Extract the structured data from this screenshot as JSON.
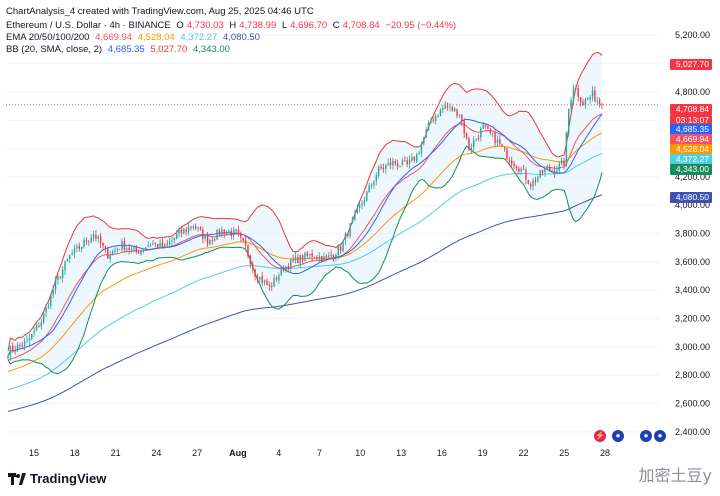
{
  "header": {
    "created_line": "ChartAnalysis_4 created with TradingView.com, Aug 25, 2025 04:46 UTC",
    "symbol": "Ethereum / U.S. Dollar · 4h · BINANCE",
    "o_label": "O",
    "o": "4,730.03",
    "h_label": "H",
    "h": "4,738.99",
    "l_label": "L",
    "l": "4,696.70",
    "c_label": "C",
    "c": "4,708.84",
    "change": "−20.95 (−0.44%)",
    "ema_label": "EMA 20/50/100/200",
    "ema20": "4,669.94",
    "ema50": "4,528.04",
    "ema100": "4,372.27",
    "ema200": "4,080.50",
    "bb_label": "BB (20, SMA, close, 2)",
    "bb_mid": "4,685.35",
    "bb_up": "5,027.70",
    "bb_low": "4,343.00"
  },
  "price_tags": {
    "bb_up": "5,027.70",
    "close": "4,708.84",
    "countdown": "03:13:07",
    "bb_mid": "4,685.35",
    "ema20": "4,669.94",
    "ema50": "4,528.04",
    "ema100": "4,372.27",
    "bb_low": "4,343.00",
    "ema200": "4,080.50"
  },
  "colors": {
    "up": "#26a69a",
    "down": "#f23645",
    "bb_upper": "#e53935",
    "bb_basis": "#2962ff",
    "bb_lower": "#1b8a5a",
    "ema20": "#f7525f",
    "ema50": "#ff9800",
    "ema100": "#4dd0e1",
    "ema200": "#3f51b5",
    "band_fill": "#e3f2fd"
  },
  "branding": {
    "name": "TradingView"
  },
  "watermark": "加密土豆y",
  "chart_data": {
    "type": "candlestick",
    "timeframe": "4h",
    "ylim": [
      2300,
      5350
    ],
    "y_ticks": [
      "5,200.00",
      "5,000.00",
      "4,800.00",
      "4,600.00",
      "4,400.00",
      "4,200.00",
      "4,000.00",
      "3,800.00",
      "3,600.00",
      "3,400.00",
      "3,200.00",
      "3,000.00",
      "2,800.00",
      "2,600.00",
      "2,400.00"
    ],
    "y_tick_values": [
      5200,
      5000,
      4800,
      4600,
      4400,
      4200,
      4000,
      3800,
      3600,
      3400,
      3200,
      3000,
      2800,
      2600,
      2400
    ],
    "x_ticks": [
      "15",
      "18",
      "21",
      "24",
      "27",
      "Aug",
      "4",
      "7",
      "10",
      "13",
      "16",
      "19",
      "22",
      "25",
      "28"
    ],
    "close_keypoints": [
      [
        0,
        2970
      ],
      [
        8,
        3030
      ],
      [
        14,
        3180
      ],
      [
        20,
        3450
      ],
      [
        26,
        3640
      ],
      [
        30,
        3700
      ],
      [
        36,
        3800
      ],
      [
        42,
        3650
      ],
      [
        48,
        3720
      ],
      [
        54,
        3670
      ],
      [
        60,
        3730
      ],
      [
        66,
        3700
      ],
      [
        72,
        3800
      ],
      [
        78,
        3860
      ],
      [
        84,
        3750
      ],
      [
        90,
        3820
      ],
      [
        96,
        3800
      ],
      [
        100,
        3700
      ],
      [
        104,
        3520
      ],
      [
        110,
        3420
      ],
      [
        116,
        3560
      ],
      [
        122,
        3620
      ],
      [
        128,
        3650
      ],
      [
        134,
        3620
      ],
      [
        140,
        3700
      ],
      [
        144,
        3850
      ],
      [
        150,
        4050
      ],
      [
        156,
        4250
      ],
      [
        162,
        4300
      ],
      [
        168,
        4280
      ],
      [
        172,
        4350
      ],
      [
        178,
        4600
      ],
      [
        184,
        4700
      ],
      [
        190,
        4650
      ],
      [
        194,
        4400
      ],
      [
        200,
        4550
      ],
      [
        206,
        4450
      ],
      [
        210,
        4350
      ],
      [
        216,
        4250
      ],
      [
        220,
        4150
      ],
      [
        226,
        4250
      ],
      [
        230,
        4250
      ],
      [
        234,
        4300
      ],
      [
        236,
        4680
      ],
      [
        238,
        4850
      ],
      [
        242,
        4720
      ],
      [
        246,
        4780
      ],
      [
        250,
        4708
      ]
    ],
    "last_close": 4708.84
  }
}
